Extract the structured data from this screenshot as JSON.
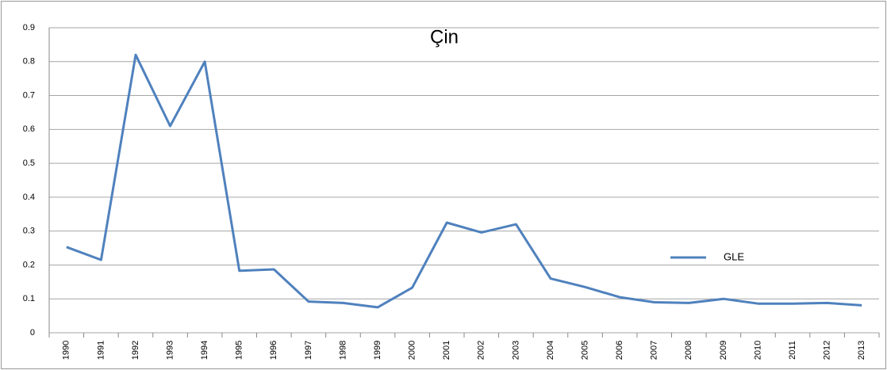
{
  "chart_data": {
    "type": "line",
    "title": "Çin",
    "categories": [
      "1990",
      "1991",
      "1992",
      "1993",
      "1994",
      "1995",
      "1996",
      "1997",
      "1998",
      "1999",
      "2000",
      "2001",
      "2002",
      "2003",
      "2004",
      "2005",
      "2006",
      "2007",
      "2008",
      "2009",
      "2010",
      "2011",
      "2012",
      "2013"
    ],
    "series": [
      {
        "name": "GLE",
        "color": "#4f81bd",
        "values": [
          0.253,
          0.215,
          0.82,
          0.61,
          0.8,
          0.183,
          0.187,
          0.092,
          0.088,
          0.075,
          0.133,
          0.325,
          0.296,
          0.32,
          0.16,
          0.135,
          0.105,
          0.09,
          0.088,
          0.1,
          0.086,
          0.086,
          0.088,
          0.081
        ]
      }
    ],
    "ylim": [
      0,
      0.9
    ],
    "yticks": [
      0,
      0.1,
      0.2,
      0.3,
      0.4,
      0.5,
      0.6,
      0.7,
      0.8,
      0.9
    ],
    "grid": true
  }
}
